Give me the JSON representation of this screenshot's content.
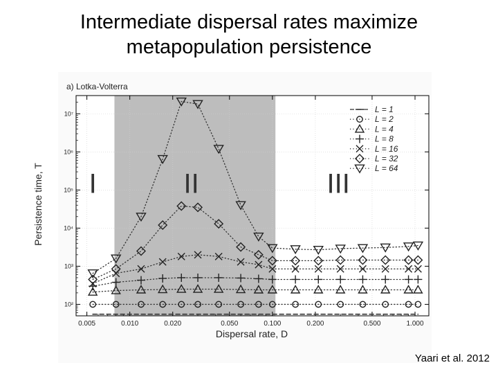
{
  "slide": {
    "title_line1": "Intermediate dispersal rates maximize",
    "title_line2": "metapopulation persistence",
    "credit": "Yaari et al. 2012"
  },
  "chart_data": {
    "type": "line",
    "panel_label": "a) Lotka-Volterra",
    "xlabel": "Dispersal rate, D",
    "ylabel": "Persistence time, T",
    "x_scale": "log",
    "y_scale": "log",
    "xlim": [
      0.0042,
      1.25
    ],
    "ylim": [
      50,
      30000000
    ],
    "x_ticks": [
      0.005,
      0.01,
      0.02,
      0.05,
      0.1,
      0.2,
      0.5,
      1.0
    ],
    "x_tick_labels": [
      "0.005",
      "0.010",
      "0.020",
      "0.050",
      "0.100",
      "0.200",
      "0.500",
      "1.000"
    ],
    "y_ticks": [
      100,
      1000,
      10000,
      100000,
      1000000,
      10000000
    ],
    "y_tick_labels": [
      "10²",
      "10³",
      "10⁴",
      "10⁵",
      "10⁶",
      "10⁷"
    ],
    "shaded_region": [
      0.0078,
      0.105
    ],
    "shade_color": "#bdbdbd",
    "regions": [
      {
        "label": "I",
        "x": 0.0055,
        "y": 150000
      },
      {
        "label": "II",
        "x": 0.027,
        "y": 150000
      },
      {
        "label": "III",
        "x": 0.29,
        "y": 150000
      }
    ],
    "x": [
      0.0055,
      0.008,
      0.012,
      0.017,
      0.023,
      0.03,
      0.042,
      0.06,
      0.08,
      0.1,
      0.145,
      0.21,
      0.3,
      0.43,
      0.62,
      0.9,
      1.05
    ],
    "series": [
      {
        "name": "L = 1",
        "marker": "dash",
        "line": "dashed",
        "values": [
          55,
          55,
          55,
          55,
          55,
          55,
          55,
          55,
          55,
          55,
          55,
          55,
          55,
          55,
          55,
          55,
          55
        ]
      },
      {
        "name": "L = 2",
        "marker": "circle",
        "line": "dotted",
        "values": [
          100,
          100,
          100,
          100,
          100,
          100,
          100,
          100,
          100,
          100,
          100,
          100,
          100,
          100,
          100,
          100,
          100
        ]
      },
      {
        "name": "L = 4",
        "marker": "triangle-up",
        "line": "dotted",
        "values": [
          210,
          230,
          240,
          245,
          250,
          250,
          250,
          245,
          240,
          240,
          240,
          240,
          240,
          240,
          240,
          240,
          240
        ]
      },
      {
        "name": "L = 8",
        "marker": "plus",
        "line": "dotted",
        "values": [
          300,
          380,
          430,
          480,
          500,
          500,
          500,
          490,
          470,
          450,
          450,
          450,
          450,
          450,
          450,
          450,
          450
        ]
      },
      {
        "name": "L = 16",
        "marker": "x",
        "line": "dotted",
        "values": [
          350,
          650,
          850,
          1300,
          1800,
          2000,
          1800,
          1300,
          1100,
          850,
          850,
          850,
          850,
          850,
          850,
          850,
          850
        ]
      },
      {
        "name": "L = 32",
        "marker": "diamond",
        "line": "dotted",
        "values": [
          450,
          850,
          2500,
          12000,
          38000,
          35000,
          13000,
          3200,
          2000,
          1400,
          1400,
          1400,
          1450,
          1450,
          1450,
          1450,
          1450
        ]
      },
      {
        "name": "L = 64",
        "marker": "triangle-down",
        "line": "dotted",
        "values": [
          650,
          1600,
          20000,
          650000,
          21000000,
          18000000,
          1200000,
          40000,
          6000,
          3000,
          2800,
          2700,
          2900,
          3000,
          3100,
          3300,
          3500
        ]
      }
    ],
    "legend_position": "top-right"
  }
}
